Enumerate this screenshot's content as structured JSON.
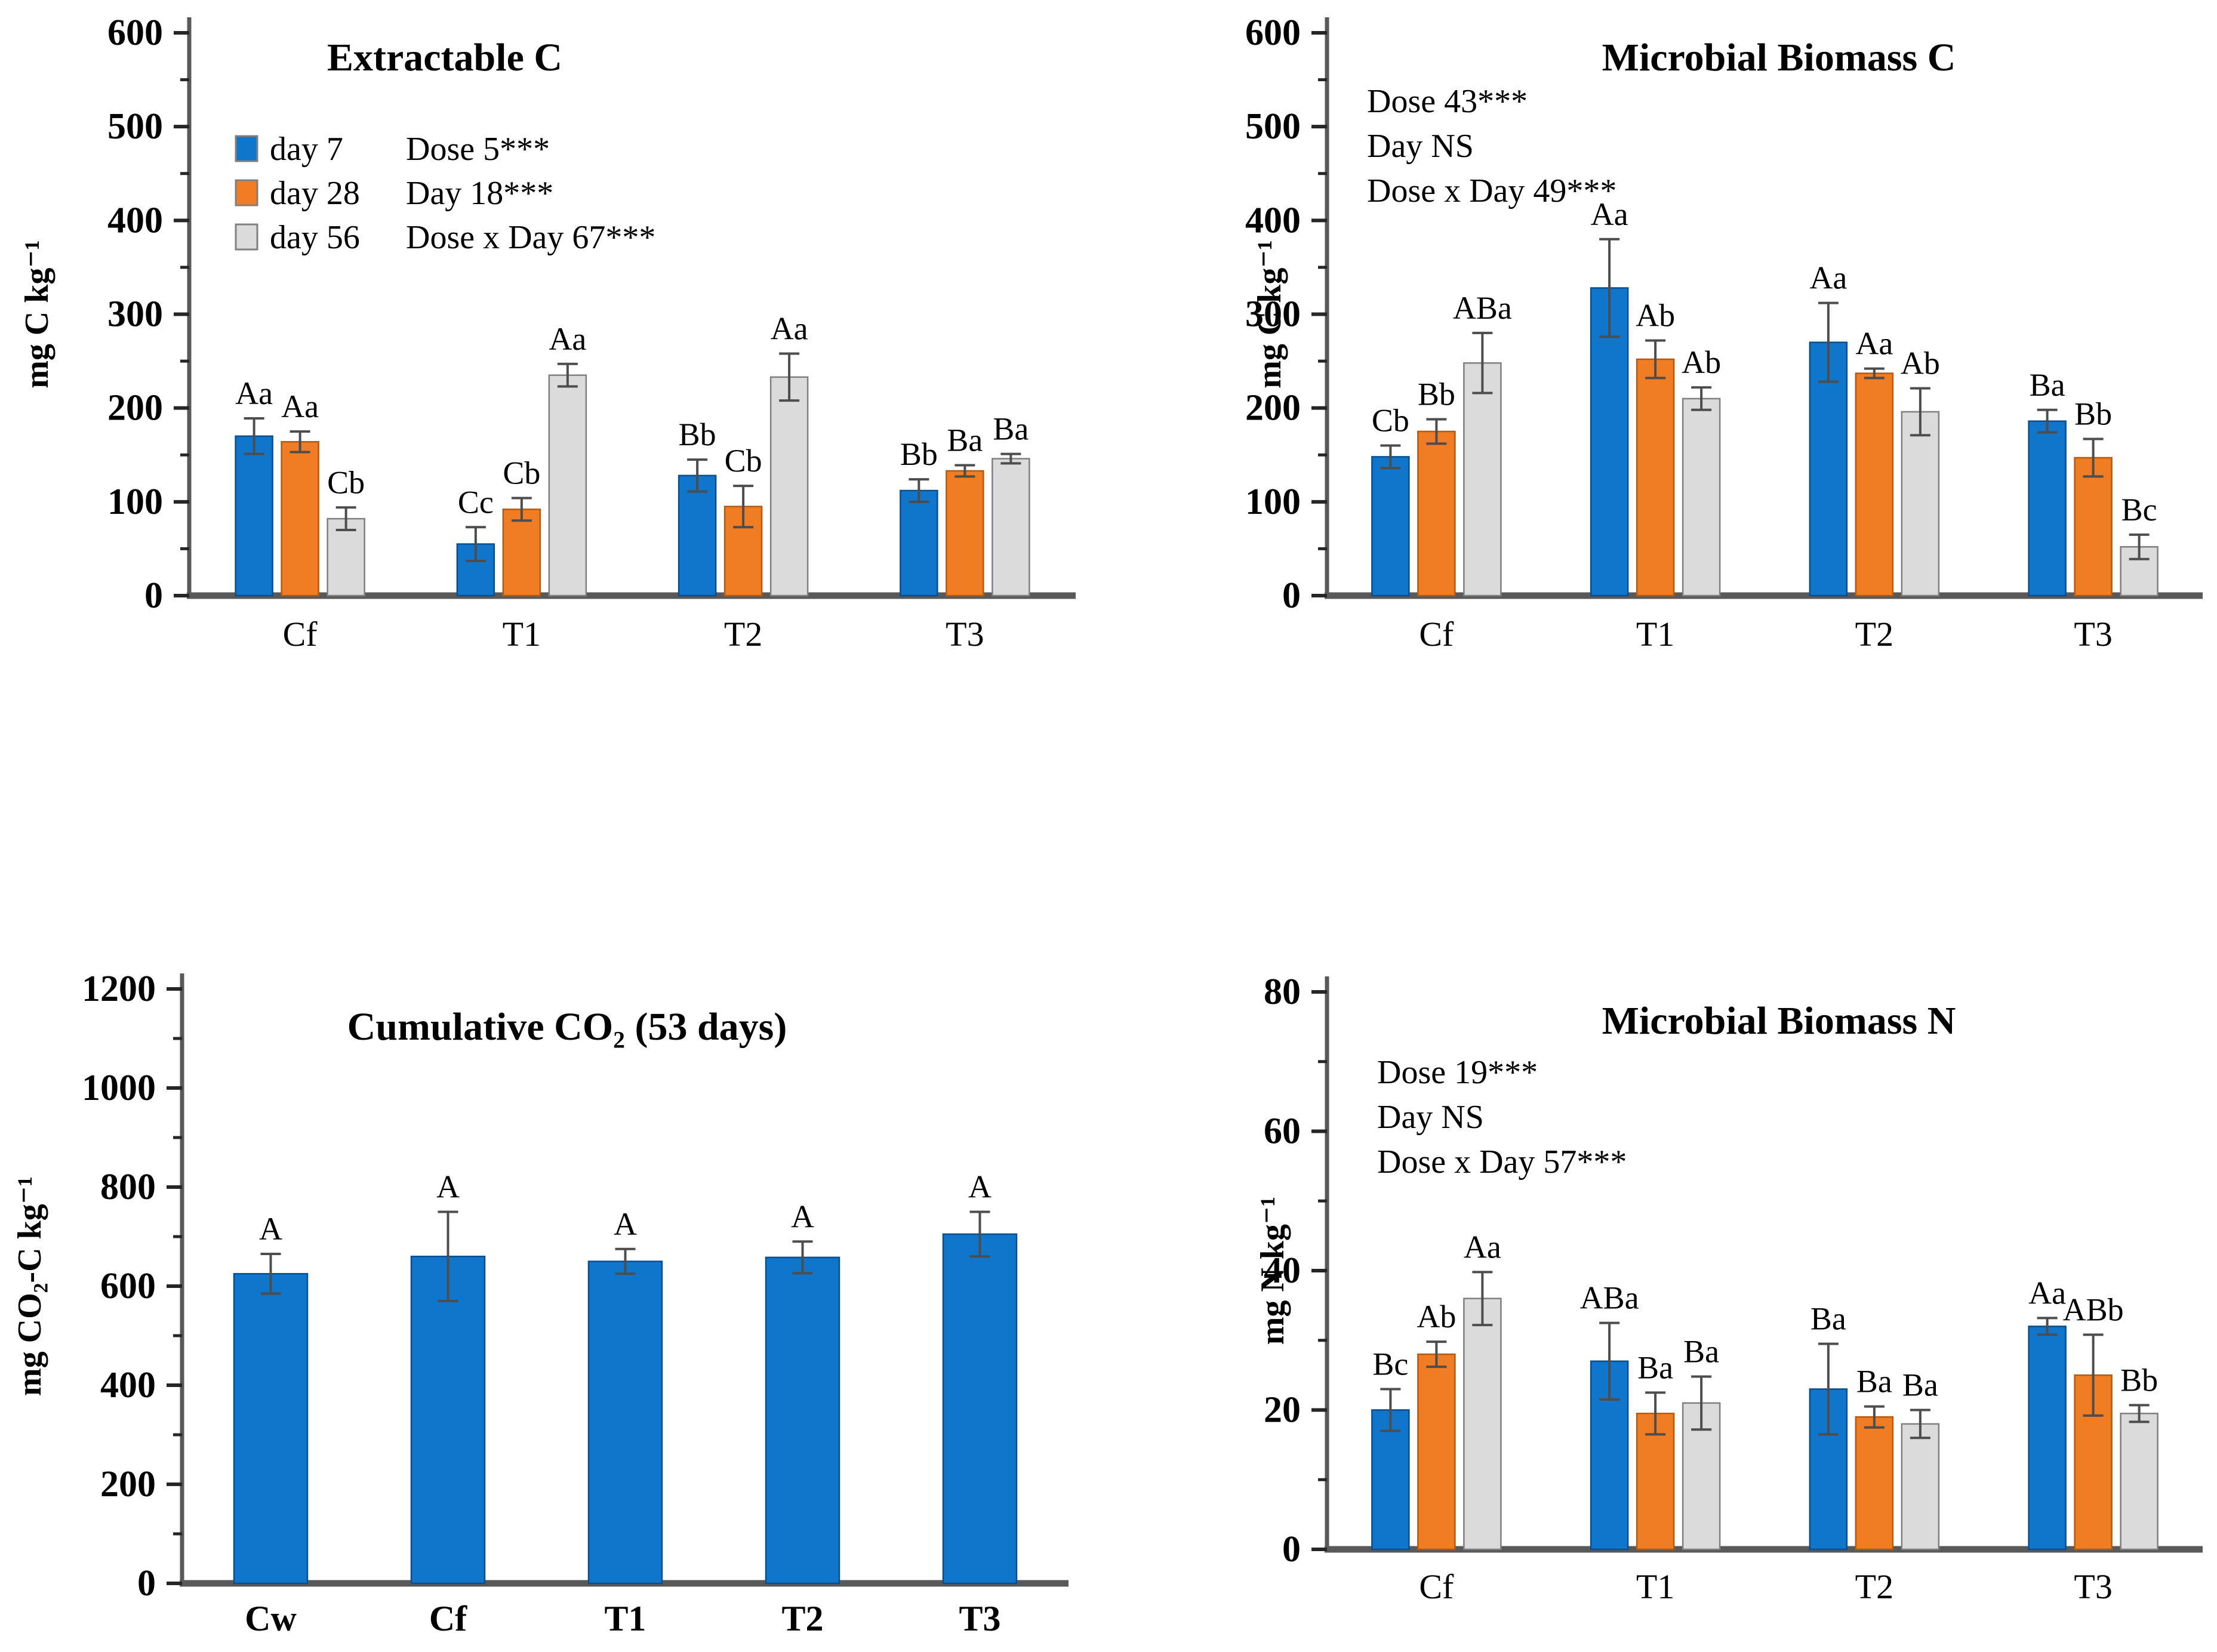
{
  "figure": {
    "background": "#ffffff",
    "description": "Four-panel bar chart figure of soil incubation experiment results"
  },
  "colors": {
    "palette": {
      "blue": {
        "fill": "#0F76CC",
        "stroke": "#0A4E8E"
      },
      "orange": {
        "fill": "#F07D23",
        "stroke": "#B35A10"
      },
      "gray": {
        "fill": "#DBDBDB",
        "stroke": "#7F7F7F"
      }
    },
    "axis": "#595959",
    "tick": "#262626",
    "error_bar": "#4D4D4D",
    "text": "#000000"
  },
  "chart_data": [
    {
      "id": "extractable-c",
      "type": "bar",
      "title": "Extractable C",
      "ylabel": "mg C kg⁻¹",
      "ylim": [
        0,
        600
      ],
      "ytick_step": 100,
      "yminor_step": 50,
      "grid": false,
      "legend_position": "upper-left-inside",
      "categories": [
        "Cf",
        "T1",
        "T2",
        "T3"
      ],
      "legend": [
        "day 7",
        "day 28",
        "day 56"
      ],
      "stats_lines": [
        "Dose 5***",
        "Day 18***",
        "Dose x Day 67***"
      ],
      "series": [
        {
          "name": "day 7",
          "color_key": "blue",
          "values": [
            170,
            55,
            128,
            112
          ],
          "errors": [
            19,
            18,
            17,
            12
          ],
          "labels": [
            "Aa",
            "Cc",
            "Bb",
            "Bb"
          ]
        },
        {
          "name": "day 28",
          "color_key": "orange",
          "values": [
            164,
            92,
            95,
            133
          ],
          "errors": [
            11,
            12,
            22,
            6
          ],
          "labels": [
            "Aa",
            "Cb",
            "Cb",
            "Ba"
          ]
        },
        {
          "name": "day 56",
          "color_key": "gray",
          "values": [
            82,
            235,
            233,
            146
          ],
          "errors": [
            12,
            12,
            25,
            5
          ],
          "labels": [
            "Cb",
            "Aa",
            "Aa",
            "Ba"
          ]
        }
      ]
    },
    {
      "id": "microbial-biomass-c",
      "type": "bar",
      "title": "Microbial Biomass C",
      "ylabel": "mg C kg⁻¹",
      "ylim": [
        0,
        600
      ],
      "ytick_step": 100,
      "yminor_step": 50,
      "grid": false,
      "categories": [
        "Cf",
        "T1",
        "T2",
        "T3"
      ],
      "legend": [],
      "stats_lines": [
        "Dose 43***",
        "Day NS",
        "Dose x Day 49***"
      ],
      "series": [
        {
          "name": "day 7",
          "color_key": "blue",
          "values": [
            148,
            328,
            270,
            186
          ],
          "errors": [
            12,
            52,
            42,
            12
          ],
          "labels": [
            "Cb",
            "Aa",
            "Aa",
            "Ba"
          ]
        },
        {
          "name": "day 28",
          "color_key": "orange",
          "values": [
            175,
            252,
            237,
            147
          ],
          "errors": [
            13,
            20,
            5,
            20
          ],
          "labels": [
            "Bb",
            "Ab",
            "Aa",
            "Bb"
          ]
        },
        {
          "name": "day 56",
          "color_key": "gray",
          "values": [
            248,
            210,
            196,
            52
          ],
          "errors": [
            32,
            12,
            25,
            13
          ],
          "labels": [
            "ABa",
            "Ab",
            "Ab",
            "Bc"
          ]
        }
      ]
    },
    {
      "id": "cumulative-co2",
      "type": "bar",
      "title": "Cumulative CO₂ (53 days)",
      "ylabel": "mg CO₂-C kg⁻¹",
      "ylim": [
        0,
        1200
      ],
      "ytick_step": 200,
      "yminor_step": 100,
      "grid": false,
      "categories": [
        "Cw",
        "Cf",
        "T1",
        "T2",
        "T3"
      ],
      "legend": [],
      "stats_lines": [],
      "series": [
        {
          "name": "cumulative CO2-C",
          "color_key": "blue",
          "values": [
            625,
            660,
            650,
            658,
            705
          ],
          "errors": [
            40,
            90,
            25,
            32,
            45
          ],
          "labels": [
            "A",
            "A",
            "A",
            "A",
            "A"
          ]
        }
      ]
    },
    {
      "id": "microbial-biomass-n",
      "type": "bar",
      "title": "Microbial Biomass N",
      "ylabel": "mg N kg⁻¹",
      "ylim": [
        0,
        80
      ],
      "ytick_step": 20,
      "yminor_step": 10,
      "grid": false,
      "categories": [
        "Cf",
        "T1",
        "T2",
        "T3"
      ],
      "legend": [],
      "stats_lines": [
        "Dose 19***",
        "Day NS",
        "Dose x Day 57***"
      ],
      "series": [
        {
          "name": "day 7",
          "color_key": "blue",
          "values": [
            20,
            27,
            23,
            32
          ],
          "errors": [
            3,
            5.5,
            6.5,
            1.2
          ],
          "labels": [
            "Bc",
            "ABa",
            "Ba",
            "Aa"
          ]
        },
        {
          "name": "day 28",
          "color_key": "orange",
          "values": [
            28,
            19.5,
            19,
            25
          ],
          "errors": [
            1.8,
            3,
            1.5,
            5.8
          ],
          "labels": [
            "Ab",
            "Ba",
            "Ba",
            "ABb"
          ]
        },
        {
          "name": "day 56",
          "color_key": "gray",
          "values": [
            36,
            21,
            18,
            19.5
          ],
          "errors": [
            3.8,
            3.8,
            2,
            1.2
          ],
          "labels": [
            "Aa",
            "Ba",
            "Ba",
            "Bb"
          ]
        }
      ]
    }
  ]
}
